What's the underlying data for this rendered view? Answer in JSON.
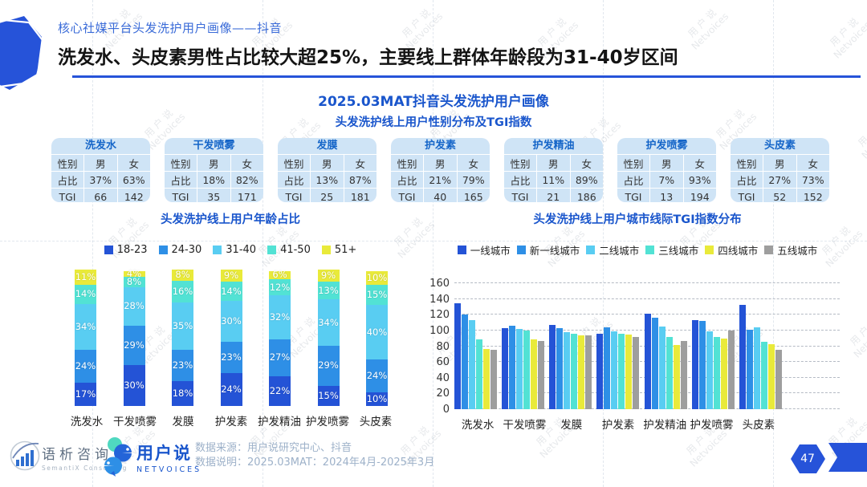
{
  "page": {
    "eyebrow": "核心社媒平台头发洗护用户画像——抖音",
    "title": "洗发水、头皮素男性占比较大超25%，主要线上群体年龄段为31-40岁区间",
    "subtitle": "2025.03MAT抖音头发洗护用户画像",
    "section_title": "头发洗护线上用户性别分布及TGI指数",
    "page_number": "47",
    "watermark_line1": "用 户 说",
    "watermark_line2": "Netvoices"
  },
  "palette": {
    "accent_blue": "#2653d9",
    "title_blue": "#1a56cc",
    "table_bg": "#cfe4f6",
    "table_header_text": "#1565c8"
  },
  "gender_tables": {
    "row_labels": [
      "性别",
      "占比",
      "TGI"
    ],
    "col_labels": [
      "男",
      "女"
    ],
    "cards": [
      {
        "title": "洗发水",
        "share": [
          "37%",
          "63%"
        ],
        "tgi": [
          "66",
          "142"
        ]
      },
      {
        "title": "干发喷雾",
        "share": [
          "18%",
          "82%"
        ],
        "tgi": [
          "35",
          "171"
        ]
      },
      {
        "title": "发膜",
        "share": [
          "13%",
          "87%"
        ],
        "tgi": [
          "25",
          "181"
        ]
      },
      {
        "title": "护发素",
        "share": [
          "21%",
          "79%"
        ],
        "tgi": [
          "40",
          "165"
        ]
      },
      {
        "title": "护发精油",
        "share": [
          "11%",
          "89%"
        ],
        "tgi": [
          "21",
          "186"
        ]
      },
      {
        "title": "护发喷雾",
        "share": [
          "7%",
          "93%"
        ],
        "tgi": [
          "13",
          "194"
        ]
      },
      {
        "title": "头皮素",
        "share": [
          "27%",
          "73%"
        ],
        "tgi": [
          "52",
          "152"
        ]
      }
    ]
  },
  "chart_data": [
    {
      "type": "bar",
      "stacked": true,
      "title": "头发洗护线上用户年龄占比",
      "unit": "%",
      "categories": [
        "洗发水",
        "干发喷雾",
        "发膜",
        "护发素",
        "护发精油",
        "护发喷雾",
        "头皮素"
      ],
      "series": [
        {
          "name": "18-23",
          "color": "#2453d6",
          "values": [
            17,
            30,
            18,
            24,
            22,
            15,
            10
          ]
        },
        {
          "name": "24-30",
          "color": "#2e8fe6",
          "values": [
            24,
            29,
            23,
            23,
            27,
            29,
            24
          ]
        },
        {
          "name": "31-40",
          "color": "#59cdf2",
          "values": [
            34,
            28,
            35,
            30,
            32,
            34,
            40
          ]
        },
        {
          "name": "41-50",
          "color": "#52e2d4",
          "values": [
            14,
            8,
            16,
            14,
            12,
            13,
            15
          ]
        },
        {
          "name": "51+",
          "color": "#e9ea3a",
          "values": [
            11,
            4,
            8,
            9,
            6,
            9,
            10
          ]
        }
      ],
      "legend_position": "top",
      "grid": false
    },
    {
      "type": "bar",
      "stacked": false,
      "title": "头发洗护线上用户城市线际TGI指数分布",
      "categories": [
        "洗发水",
        "干发喷雾",
        "发膜",
        "护发素",
        "护发精油",
        "护发喷雾",
        "头皮素"
      ],
      "series": [
        {
          "name": "一线城市",
          "color": "#2453d6",
          "values": [
            135,
            103,
            107,
            96,
            121,
            113,
            133
          ]
        },
        {
          "name": "新一线城市",
          "color": "#2e8fe6",
          "values": [
            120,
            106,
            103,
            104,
            116,
            112,
            101
          ]
        },
        {
          "name": "二线城市",
          "color": "#59cdf2",
          "values": [
            113,
            102,
            98,
            99,
            105,
            99,
            104
          ]
        },
        {
          "name": "三线城市",
          "color": "#52e2d4",
          "values": [
            89,
            100,
            96,
            96,
            92,
            92,
            86
          ]
        },
        {
          "name": "四线城市",
          "color": "#e9ea3a",
          "values": [
            76,
            89,
            94,
            95,
            82,
            90,
            83
          ]
        },
        {
          "name": "五线城市",
          "color": "#9e9e9e",
          "values": [
            75,
            87,
            94,
            92,
            87,
            100,
            75
          ]
        }
      ],
      "ylim": [
        0,
        160
      ],
      "yticks": [
        0,
        20,
        40,
        60,
        80,
        100,
        120,
        140,
        160
      ],
      "legend_position": "top",
      "grid": true
    }
  ],
  "footer": {
    "semantix_name": "语析咨询",
    "semantix_sub": "SemantiX Consulting",
    "netvoices_name": "用户说",
    "netvoices_sub": "NETVOICES",
    "source_line": "数据来源：用户说研究中心、抖音",
    "note_line": "数据说明：2025.03MAT：2024年4月-2025年3月"
  }
}
